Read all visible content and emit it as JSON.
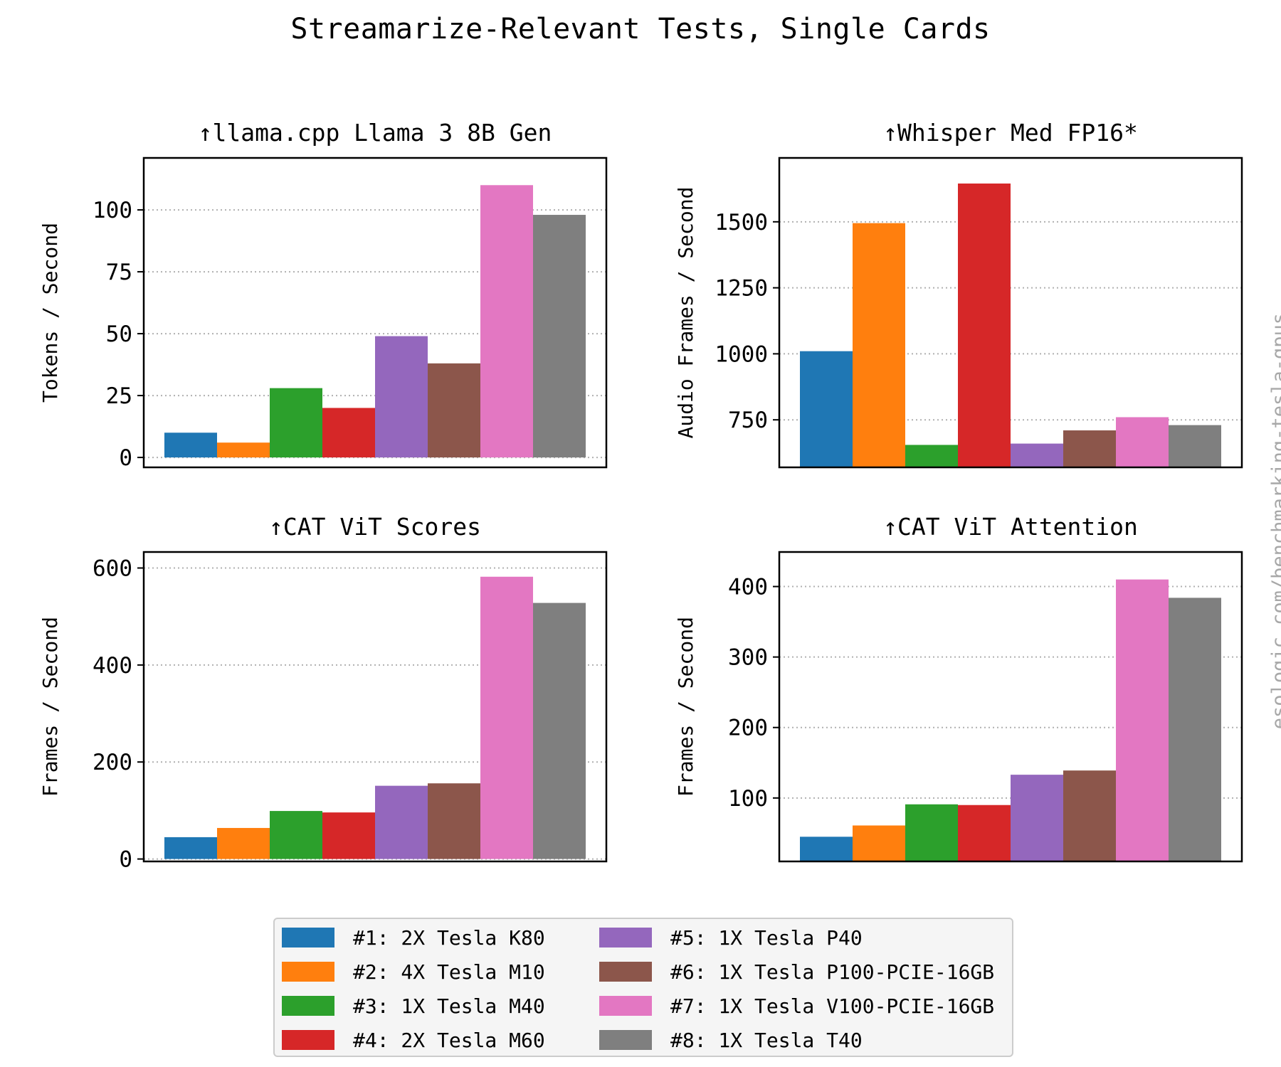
{
  "figure": {
    "title": "Streamarize-Relevant Tests, Single Cards",
    "watermark": "esologic.com/benchmarking-tesla-gpus"
  },
  "legend": {
    "placement": "bottom-center",
    "columns": 2,
    "entries": [
      {
        "label": "#1: 2X Tesla K80",
        "color": "#1f77b4"
      },
      {
        "label": "#2: 4X Tesla M10",
        "color": "#ff7f0e"
      },
      {
        "label": "#3: 1X Tesla M40",
        "color": "#2ca02c"
      },
      {
        "label": "#4: 2X Tesla M60",
        "color": "#d62728"
      },
      {
        "label": "#5: 1X Tesla P40",
        "color": "#9467bd"
      },
      {
        "label": "#6: 1X Tesla P100-PCIE-16GB",
        "color": "#8c564b"
      },
      {
        "label": "#7: 1X Tesla V100-PCIE-16GB",
        "color": "#e377c2"
      },
      {
        "label": "#8: 1X Tesla T40",
        "color": "#7f7f7f"
      }
    ]
  },
  "chart_data": [
    {
      "type": "bar",
      "title": "↑llama.cpp Llama 3 8B Gen",
      "ylabel": "Tokens / Second",
      "ylim": [
        -4,
        121
      ],
      "yticks": [
        0,
        25,
        50,
        75,
        100
      ],
      "grid": "y dotted",
      "categories": [
        "#1: 2X Tesla K80",
        "#2: 4X Tesla M10",
        "#3: 1X Tesla M40",
        "#4: 2X Tesla M60",
        "#5: 1X Tesla P40",
        "#6: 1X Tesla P100-PCIE-16GB",
        "#7: 1X Tesla V100-PCIE-16GB",
        "#8: 1X Tesla T40"
      ],
      "values": [
        10,
        6,
        28,
        20,
        49,
        38,
        110,
        98
      ]
    },
    {
      "type": "bar",
      "title": "↑Whisper Med FP16*",
      "ylabel": "Audio Frames / Second",
      "ylim": [
        570,
        1742
      ],
      "yticks": [
        750,
        1000,
        1250,
        1500
      ],
      "grid": "y dotted",
      "categories": [
        "#1: 2X Tesla K80",
        "#2: 4X Tesla M10",
        "#3: 1X Tesla M40",
        "#4: 2X Tesla M60",
        "#5: 1X Tesla P40",
        "#6: 1X Tesla P100-PCIE-16GB",
        "#7: 1X Tesla V100-PCIE-16GB",
        "#8: 1X Tesla T40"
      ],
      "values": [
        1010,
        1495,
        655,
        1645,
        660,
        710,
        760,
        730
      ]
    },
    {
      "type": "bar",
      "title": "↑CAT ViT Scores",
      "ylabel": "Frames / Second",
      "ylim": [
        -5,
        633
      ],
      "yticks": [
        0,
        200,
        400,
        600
      ],
      "grid": "y dotted",
      "categories": [
        "#1: 2X Tesla K80",
        "#2: 4X Tesla M10",
        "#3: 1X Tesla M40",
        "#4: 2X Tesla M60",
        "#5: 1X Tesla P40",
        "#6: 1X Tesla P100-PCIE-16GB",
        "#7: 1X Tesla V100-PCIE-16GB",
        "#8: 1X Tesla T40"
      ],
      "values": [
        45,
        64,
        99,
        96,
        151,
        156,
        582,
        528
      ]
    },
    {
      "type": "bar",
      "title": "↑CAT ViT Attention",
      "ylabel": "Frames / Second",
      "ylim": [
        10,
        449
      ],
      "yticks": [
        100,
        200,
        300,
        400
      ],
      "grid": "y dotted",
      "categories": [
        "#1: 2X Tesla K80",
        "#2: 4X Tesla M10",
        "#3: 1X Tesla M40",
        "#4: 2X Tesla M60",
        "#5: 1X Tesla P40",
        "#6: 1X Tesla P100-PCIE-16GB",
        "#7: 1X Tesla V100-PCIE-16GB",
        "#8: 1X Tesla T40"
      ],
      "values": [
        45,
        61,
        91,
        90,
        133,
        139,
        410,
        384
      ]
    }
  ]
}
